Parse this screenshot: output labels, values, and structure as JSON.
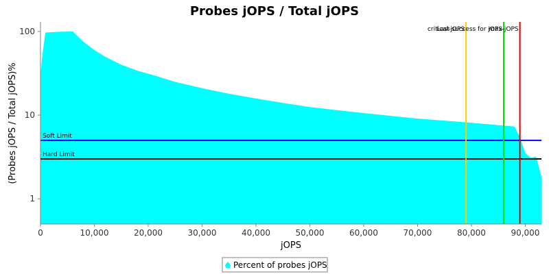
{
  "chart_data": {
    "type": "area",
    "title": "Probes jOPS / Total jOPS",
    "xlabel": "jOPS",
    "ylabel": "(Probes jOPS / Total jOPS)%",
    "xlim": [
      0,
      93000
    ],
    "ylim": [
      0.5,
      130
    ],
    "yscale": "log",
    "grid": false,
    "legend_position": "bottom-center",
    "x_ticks": [
      0,
      10000,
      20000,
      30000,
      40000,
      50000,
      60000,
      70000,
      80000,
      90000
    ],
    "x_tick_labels": [
      "0",
      "10,000",
      "20,000",
      "30,000",
      "40,000",
      "50,000",
      "60,000",
      "70,000",
      "80,000",
      "90,000"
    ],
    "y_ticks": [
      1,
      10,
      100
    ],
    "y_tick_labels": [
      "1",
      "10",
      "100"
    ],
    "series": [
      {
        "name": "Percent of probes jOPS",
        "color": "#00ffff",
        "x": [
          0,
          300,
          900,
          3000,
          6000,
          8000,
          10000,
          12000,
          15000,
          18000,
          21000,
          25000,
          30000,
          35000,
          40000,
          45000,
          50000,
          55000,
          60000,
          65000,
          70000,
          75000,
          80000,
          85000,
          88000,
          89000,
          90000,
          91000,
          92000,
          93000
        ],
        "y": [
          30,
          50,
          97,
          99,
          100,
          75,
          60,
          50,
          40,
          34,
          30,
          25,
          21,
          18,
          15.8,
          14,
          12.5,
          11.5,
          10.6,
          9.8,
          9.1,
          8.6,
          8.1,
          7.6,
          7.3,
          5.5,
          3.5,
          3.1,
          3.2,
          1.8
        ]
      }
    ],
    "reference_lines_horizontal": [
      {
        "label": "Soft Limit",
        "y": 5,
        "color": "#0000ff"
      },
      {
        "label": "Hard Limit",
        "y": 3,
        "color": "#000000"
      }
    ],
    "reference_lines_vertical": [
      {
        "label": "critical-jOPS",
        "x": 79000,
        "color": "#ffcc00"
      },
      {
        "label": "Last success for jOPS",
        "x": 86000,
        "color": "#00dd00"
      },
      {
        "label": "max-jOPS",
        "x": 89000,
        "color": "#dd0000"
      }
    ]
  }
}
